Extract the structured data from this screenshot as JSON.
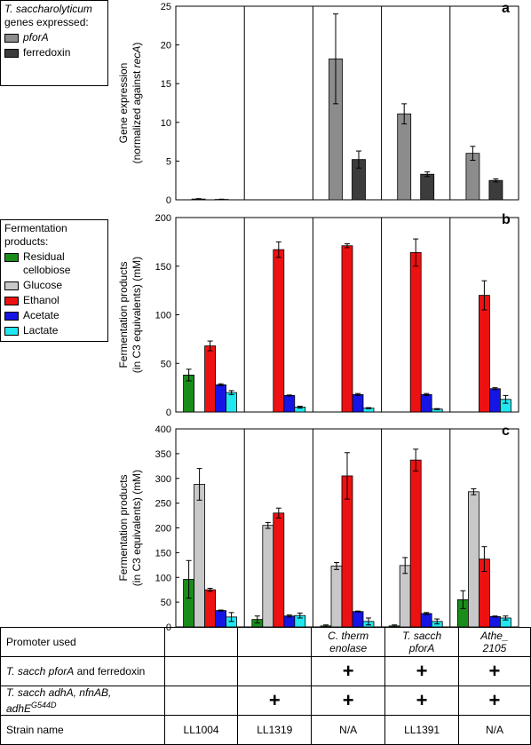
{
  "colors": {
    "pforA": "#8c8c8c",
    "ferredoxin": "#3c3c3c",
    "residual_cellobiose": "#1a8c1a",
    "glucose": "#c8c8c8",
    "ethanol": "#ee1111",
    "acetate": "#1515e6",
    "lactate": "#22e6f0"
  },
  "legend_a": {
    "title_italic": "T. saccharolyticum",
    "title_rest": "genes expressed:",
    "items": [
      {
        "key": "pforA",
        "label": "pforA",
        "italic": true
      },
      {
        "key": "ferredoxin",
        "label": "ferredoxin",
        "italic": false
      }
    ]
  },
  "legend_b": {
    "title": "Fermentation products:",
    "items": [
      {
        "key": "residual_cellobiose",
        "label": "Residual cellobiose"
      },
      {
        "key": "glucose",
        "label": "Glucose"
      },
      {
        "key": "ethanol",
        "label": "Ethanol"
      },
      {
        "key": "acetate",
        "label": "Acetate"
      },
      {
        "key": "lactate",
        "label": "Lactate"
      }
    ]
  },
  "chart_data": [
    {
      "panel": "a",
      "type": "bar",
      "ylabel_line1": "Gene expression",
      "ylabel_line2_pre": "(normalized against ",
      "ylabel_line2_italic": "recA",
      "ylabel_line2_post": ")",
      "ylim": [
        0,
        25
      ],
      "yticks": [
        0,
        5,
        10,
        15,
        20,
        25
      ],
      "categories": [
        "LL1004",
        "LL1319",
        "C. therm enolase",
        "T. sacch pforA",
        "Athe_2105"
      ],
      "series": [
        {
          "name": "pforA",
          "key": "pforA",
          "values": [
            0.1,
            0,
            18.2,
            11.1,
            6.0
          ],
          "errors": [
            0.05,
            0,
            5.8,
            1.3,
            0.9
          ]
        },
        {
          "name": "ferredoxin",
          "key": "ferredoxin",
          "values": [
            0.05,
            0,
            5.2,
            3.3,
            2.5
          ],
          "errors": [
            0.03,
            0,
            1.1,
            0.3,
            0.2
          ]
        }
      ]
    },
    {
      "panel": "b",
      "type": "bar",
      "ylabel_line1": "Fermentation products",
      "ylabel_line2": "(in C3 equivalents) (mM)",
      "ylim": [
        0,
        200
      ],
      "yticks": [
        0,
        50,
        100,
        150,
        200
      ],
      "categories": [
        "LL1004",
        "LL1319",
        "C. therm enolase",
        "T. sacch pforA",
        "Athe_2105"
      ],
      "series": [
        {
          "name": "Residual cellobiose",
          "key": "residual_cellobiose",
          "values": [
            38,
            0,
            0,
            0,
            0
          ],
          "errors": [
            6,
            0,
            0,
            0,
            0
          ]
        },
        {
          "name": "Glucose",
          "key": "glucose",
          "values": [
            0,
            0,
            0,
            0,
            0
          ],
          "errors": [
            0,
            0,
            0,
            0,
            0
          ]
        },
        {
          "name": "Ethanol",
          "key": "ethanol",
          "values": [
            68,
            167,
            171,
            164,
            120
          ],
          "errors": [
            5,
            8,
            2,
            14,
            15
          ]
        },
        {
          "name": "Acetate",
          "key": "acetate",
          "values": [
            28,
            17,
            18,
            18,
            24
          ],
          "errors": [
            1,
            0.5,
            1,
            1,
            1
          ]
        },
        {
          "name": "Lactate",
          "key": "lactate",
          "values": [
            20,
            5,
            4,
            3,
            13
          ],
          "errors": [
            2,
            1,
            0.5,
            0.5,
            4
          ]
        }
      ]
    },
    {
      "panel": "c",
      "type": "bar",
      "ylabel_line1": "Fermentation products",
      "ylabel_line2": "(in C3 equivalents) (mM)",
      "ylim": [
        0,
        400
      ],
      "yticks": [
        0,
        50,
        100,
        150,
        200,
        250,
        300,
        350,
        400
      ],
      "categories": [
        "LL1004",
        "LL1319",
        "C. therm enolase",
        "T. sacch pforA",
        "Athe_2105"
      ],
      "series": [
        {
          "name": "Residual cellobiose",
          "key": "residual_cellobiose",
          "values": [
            96,
            15,
            2,
            2,
            55
          ],
          "errors": [
            38,
            7,
            2,
            2,
            18
          ]
        },
        {
          "name": "Glucose",
          "key": "glucose",
          "values": [
            288,
            205,
            123,
            124,
            273
          ],
          "errors": [
            32,
            6,
            7,
            16,
            6
          ]
        },
        {
          "name": "Ethanol",
          "key": "ethanol",
          "values": [
            75,
            230,
            305,
            337,
            137
          ],
          "errors": [
            3,
            10,
            47,
            22,
            25
          ]
        },
        {
          "name": "Acetate",
          "key": "acetate",
          "values": [
            33,
            22,
            31,
            27,
            21
          ],
          "errors": [
            1,
            2,
            1,
            2,
            1
          ]
        },
        {
          "name": "Lactate",
          "key": "lactate",
          "values": [
            20,
            23,
            11,
            11,
            18
          ],
          "errors": [
            9,
            5,
            7,
            5,
            4
          ]
        }
      ]
    }
  ],
  "panel_letters": [
    "a",
    "b",
    "c"
  ],
  "table": {
    "rows": [
      {
        "label": "Promoter used",
        "cells": [
          "",
          "",
          "C. therm\nenolase",
          "T. sacch\npforA",
          "Athe_\n2105"
        ]
      },
      {
        "label": "T. sacch pforA and ferredoxin",
        "cells": [
          "",
          "",
          "+",
          "+",
          "+"
        ]
      },
      {
        "label": "T. sacch adhA, nfnAB, adhE",
        "label_sup": "G544D",
        "cells": [
          "",
          "+",
          "+",
          "+",
          "+"
        ]
      },
      {
        "label": "Strain name",
        "cells": [
          "LL1004",
          "LL1319",
          "N/A",
          "LL1391",
          "N/A"
        ]
      }
    ]
  }
}
